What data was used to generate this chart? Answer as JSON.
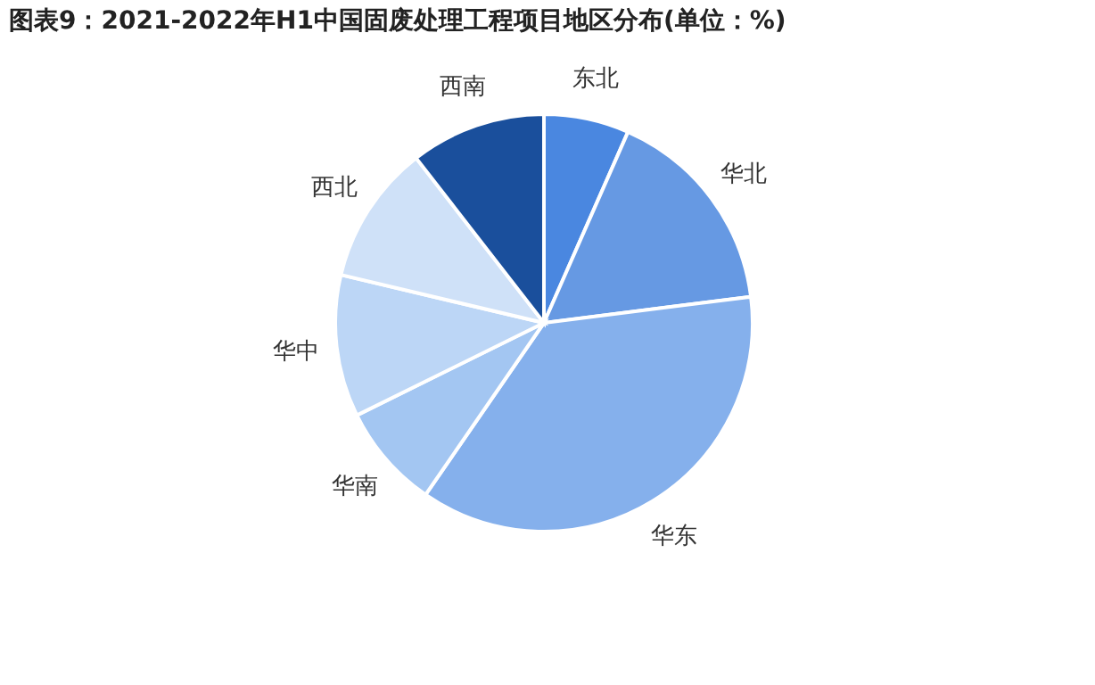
{
  "chart_data": {
    "type": "pie",
    "title": "图表9：2021-2022年H1中国固废处理工程项目地区分布(单位：%)",
    "categories": [
      "东北",
      "华北",
      "华东",
      "华南",
      "华中",
      "西北",
      "西南"
    ],
    "values": [
      6.6,
      16.4,
      36.6,
      8.1,
      11,
      10.8,
      10.5
    ],
    "colors": [
      "#4a87e0",
      "#6699e3",
      "#85b0ec",
      "#a3c6f2",
      "#bcd6f6",
      "#cfe1f8",
      "#1a4f9c"
    ],
    "legend": false
  }
}
